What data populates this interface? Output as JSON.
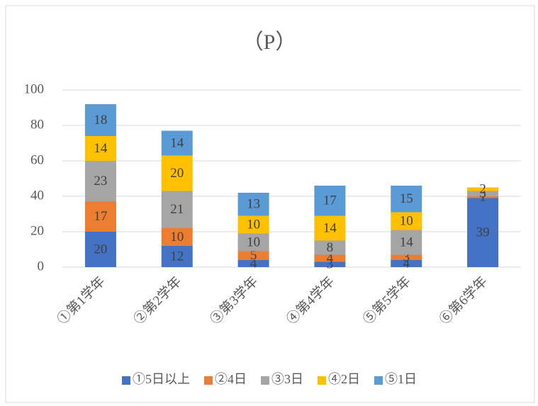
{
  "chart_data": {
    "type": "stacked_bar",
    "title": "（P）",
    "categories": [
      "①第1学年",
      "②第2学年",
      "③第3学年",
      "④第4学年",
      "⑤第5学年",
      "⑥第6学年"
    ],
    "series": [
      {
        "name": "①5日以上",
        "color": "#4472c4",
        "values": [
          20,
          12,
          4,
          3,
          4,
          39
        ]
      },
      {
        "name": "②4日",
        "color": "#ed7d31",
        "values": [
          17,
          10,
          5,
          4,
          3,
          1
        ]
      },
      {
        "name": "③3日",
        "color": "#a5a5a5",
        "values": [
          23,
          21,
          10,
          8,
          14,
          3
        ]
      },
      {
        "name": "④2日",
        "color": "#ffc000",
        "values": [
          14,
          20,
          10,
          14,
          10,
          2
        ]
      },
      {
        "name": "⑤1日",
        "color": "#5b9bd5",
        "values": [
          18,
          14,
          13,
          17,
          15,
          null
        ]
      }
    ],
    "ylim": [
      0,
      100
    ],
    "yticks": [
      0,
      20,
      40,
      60,
      80,
      100
    ],
    "grid": true,
    "legend": "bottom"
  }
}
